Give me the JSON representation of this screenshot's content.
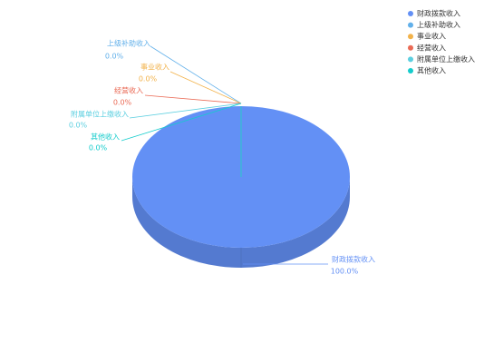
{
  "chart_data": {
    "type": "pie",
    "categories": [
      "财政拨款收入",
      "上级补助收入",
      "事业收入",
      "经营收入",
      "附属单位上缴收入",
      "其他收入"
    ],
    "values": [
      100,
      0,
      0,
      0,
      0,
      0
    ],
    "value_labels": [
      "100.0%",
      "0.0%",
      "0.0%",
      "0.0%",
      "0.0%",
      "0.0%"
    ],
    "colors": [
      "#6390f5",
      "#62b0ea",
      "#f2b24a",
      "#ea6a55",
      "#5ccfe0",
      "#14cccc"
    ],
    "legend": "top-right"
  }
}
